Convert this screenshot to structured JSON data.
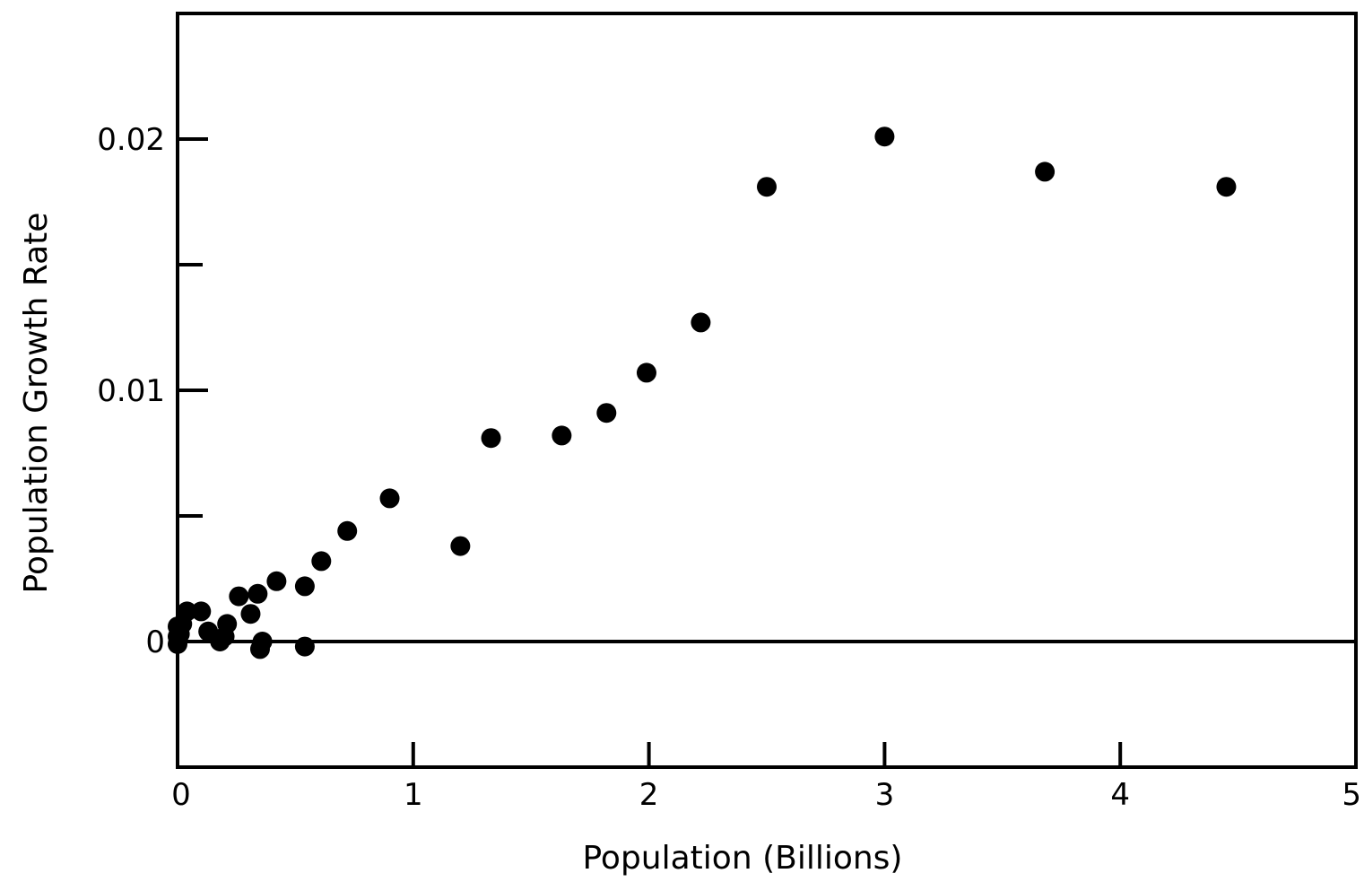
{
  "chart_data": {
    "type": "scatter",
    "title": "",
    "xlabel": "Population (Billions)",
    "ylabel": "Population Growth Rate",
    "xlim": [
      0,
      5
    ],
    "ylim": [
      -0.005,
      0.025
    ],
    "xticks": [
      0,
      1,
      2,
      3,
      4,
      5
    ],
    "xtick_labels": [
      "0",
      "1",
      "2",
      "3",
      "4",
      "5"
    ],
    "yticks": [
      0,
      0.01,
      0.02
    ],
    "ytick_labels": [
      "0",
      "0.01",
      "0.02"
    ],
    "y_minor_ticks": [
      0.005,
      0.015
    ],
    "reference_line_y": 0,
    "grid": false,
    "legend": false,
    "marker_color": "#000000",
    "series": [
      {
        "points": [
          {
            "x": 0.0,
            "y": 0.0002
          },
          {
            "x": 0.0,
            "y": -0.0001
          },
          {
            "x": 0.0,
            "y": 0.0006
          },
          {
            "x": 0.01,
            "y": 0.0003
          },
          {
            "x": 0.02,
            "y": 0.0007
          },
          {
            "x": 0.04,
            "y": 0.0012
          },
          {
            "x": 0.1,
            "y": 0.0012
          },
          {
            "x": 0.13,
            "y": 0.0004
          },
          {
            "x": 0.18,
            "y": 0.0
          },
          {
            "x": 0.2,
            "y": 0.0002
          },
          {
            "x": 0.21,
            "y": 0.0007
          },
          {
            "x": 0.26,
            "y": 0.0018
          },
          {
            "x": 0.31,
            "y": 0.0011
          },
          {
            "x": 0.34,
            "y": 0.0019
          },
          {
            "x": 0.35,
            "y": -0.0003
          },
          {
            "x": 0.36,
            "y": 0.0
          },
          {
            "x": 0.42,
            "y": 0.0024
          },
          {
            "x": 0.54,
            "y": 0.0022
          },
          {
            "x": 0.54,
            "y": -0.0002
          },
          {
            "x": 0.61,
            "y": 0.0032
          },
          {
            "x": 0.72,
            "y": 0.0044
          },
          {
            "x": 0.9,
            "y": 0.0057
          },
          {
            "x": 1.2,
            "y": 0.0038
          },
          {
            "x": 1.33,
            "y": 0.0081
          },
          {
            "x": 1.63,
            "y": 0.0082
          },
          {
            "x": 1.82,
            "y": 0.0091
          },
          {
            "x": 1.99,
            "y": 0.0107
          },
          {
            "x": 2.22,
            "y": 0.0127
          },
          {
            "x": 2.5,
            "y": 0.0181
          },
          {
            "x": 3.0,
            "y": 0.0201
          },
          {
            "x": 3.68,
            "y": 0.0187
          },
          {
            "x": 4.45,
            "y": 0.0181
          }
        ]
      }
    ]
  }
}
